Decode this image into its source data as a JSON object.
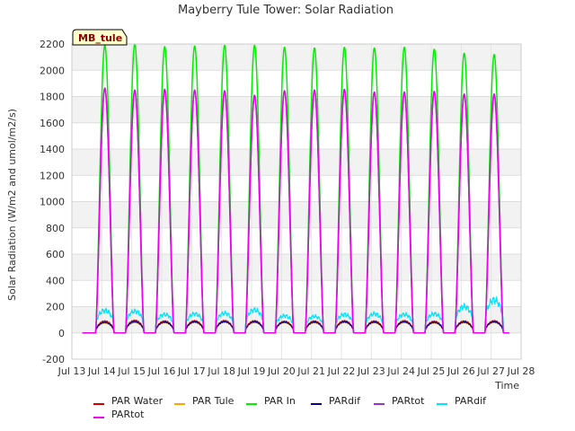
{
  "chart_data": {
    "type": "line",
    "title": "Mayberry Tule Tower: Solar Radiation",
    "xlabel": "Time",
    "ylabel": "Solar Radiation (W/m2 and umol/m2/s)",
    "badge": "MB_tule",
    "xlim": [
      13,
      28
    ],
    "ylim": [
      -200,
      2200
    ],
    "x_ticks": [
      {
        "value": 13,
        "label": "Jul 13"
      },
      {
        "value": 14,
        "label": "Jul 14"
      },
      {
        "value": 15,
        "label": "Jul 15"
      },
      {
        "value": 16,
        "label": "Jul 16"
      },
      {
        "value": 17,
        "label": "Jul 17"
      },
      {
        "value": 18,
        "label": "Jul 18"
      },
      {
        "value": 19,
        "label": "Jul 19"
      },
      {
        "value": 20,
        "label": "Jul 20"
      },
      {
        "value": 21,
        "label": "Jul 21"
      },
      {
        "value": 22,
        "label": "Jul 22"
      },
      {
        "value": 23,
        "label": "Jul 23"
      },
      {
        "value": 24,
        "label": "Jul 24"
      },
      {
        "value": 25,
        "label": "Jul 25"
      },
      {
        "value": 26,
        "label": "Jul 26"
      },
      {
        "value": 27,
        "label": "Jul 27"
      },
      {
        "value": 28,
        "label": "Jul 28"
      }
    ],
    "y_ticks": [
      -200,
      0,
      200,
      400,
      600,
      800,
      1000,
      1200,
      1400,
      1600,
      1800,
      2000,
      2200
    ],
    "day_start": 13.6,
    "day_noon_offset": 0.5,
    "day_length_fraction": 0.62,
    "series": [
      {
        "name": "PAR Water",
        "color": "#cc0000",
        "stroke_width": 1.2,
        "shape": "sine",
        "peaks": [
          90,
          95,
          90,
          92,
          93,
          92,
          88,
          90,
          92,
          90,
          92,
          88,
          90,
          92
        ]
      },
      {
        "name": "PAR Tule",
        "color": "#ffa500",
        "stroke_width": 1.2,
        "shape": "sine",
        "peaks": [
          75,
          80,
          78,
          80,
          82,
          80,
          78,
          78,
          80,
          78,
          80,
          76,
          78,
          80
        ]
      },
      {
        "name": "PAR In",
        "color": "#00ee00",
        "stroke_width": 1.5,
        "shape": "peak",
        "peaks": [
          2190,
          2200,
          2180,
          2185,
          2190,
          2190,
          2175,
          2170,
          2175,
          2170,
          2175,
          2160,
          2130,
          2120
        ]
      },
      {
        "name": "PARdif",
        "color": "#00008b",
        "stroke_width": 1.2,
        "shape": "sine",
        "peaks": [
          80,
          85,
          82,
          84,
          85,
          84,
          82,
          82,
          84,
          82,
          84,
          80,
          82,
          84
        ]
      },
      {
        "name": "PARtot",
        "color": "#9932cc",
        "stroke_width": 1.5,
        "shape": "peak",
        "peaks": [
          1865,
          1850,
          1855,
          1850,
          1845,
          1810,
          1845,
          1850,
          1855,
          1835,
          1835,
          1840,
          1820,
          1820
        ]
      },
      {
        "name": "PARdif",
        "color": "#00e5ff",
        "stroke_width": 1.2,
        "shape": "flat",
        "peaks": [
          170,
          165,
          140,
          145,
          150,
          175,
          130,
          125,
          140,
          145,
          140,
          145,
          200,
          250
        ]
      },
      {
        "name": "PARtot",
        "color": "#ee00ee",
        "stroke_width": 1.5,
        "shape": "peak",
        "peaks": [
          1860,
          1845,
          1850,
          1845,
          1840,
          1805,
          1840,
          1845,
          1850,
          1830,
          1830,
          1835,
          1815,
          1815
        ]
      }
    ]
  }
}
